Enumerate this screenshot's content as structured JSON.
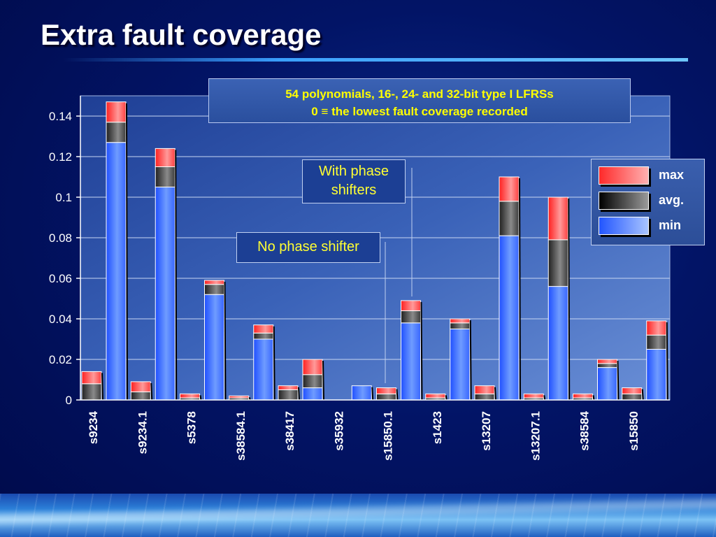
{
  "slide": {
    "title": "Extra fault coverage",
    "note_line1": "54 polynomials, 16-, 24- and 32-bit type I LFRSs",
    "note_line2": "0 ≡ the lowest fault coverage recorded",
    "callout_with": "With phase shifters",
    "callout_no": "No phase shifter"
  },
  "legend": {
    "max": "max",
    "avg": "avg.",
    "min": "min"
  },
  "colors": {
    "max": "#ff3b3b",
    "avg": "#555555",
    "min": "#3a6cff",
    "title": "#ffffff",
    "annotation": "#ffff00"
  },
  "chart_data": {
    "type": "bar",
    "stacked": true,
    "categories": [
      "s9234",
      "s9234.1",
      "s5378",
      "s38584.1",
      "s38417",
      "s35932",
      "s15850.1",
      "s1423",
      "s13207",
      "s13207.1",
      "s38584",
      "s15850"
    ],
    "groups": [
      "No phase shifter",
      "With phase shifters"
    ],
    "series": [
      {
        "name": "min",
        "no_phase_shifter": [
          0.0,
          0.0,
          0.0,
          0.0,
          0.0,
          0.0,
          0.0,
          0.0,
          0.0,
          0.0,
          0.0,
          0.0
        ],
        "with_phase_shifters": [
          0.127,
          0.105,
          0.052,
          0.03,
          0.006,
          0.007,
          0.038,
          0.035,
          0.081,
          0.056,
          0.016,
          0.025
        ]
      },
      {
        "name": "avg.",
        "no_phase_shifter": [
          0.008,
          0.004,
          0.001,
          0.001,
          0.005,
          0.0,
          0.003,
          0.001,
          0.003,
          0.001,
          0.001,
          0.003
        ],
        "with_phase_shifters": [
          0.137,
          0.115,
          0.057,
          0.033,
          0.0125,
          0.007,
          0.044,
          0.038,
          0.098,
          0.079,
          0.018,
          0.032
        ]
      },
      {
        "name": "max",
        "no_phase_shifter": [
          0.014,
          0.009,
          0.003,
          0.002,
          0.007,
          0.0,
          0.006,
          0.003,
          0.007,
          0.003,
          0.003,
          0.006
        ],
        "with_phase_shifters": [
          0.147,
          0.124,
          0.059,
          0.037,
          0.02,
          0.007,
          0.049,
          0.04,
          0.11,
          0.1,
          0.02,
          0.039
        ]
      }
    ],
    "ylim": [
      0,
      0.15
    ],
    "yticks": [
      "0",
      "0.02",
      "0.04",
      "0.06",
      "0.08",
      "0.1",
      "0.12",
      "0.14"
    ],
    "ytick_values": [
      0,
      0.02,
      0.04,
      0.06,
      0.08,
      0.1,
      0.12,
      0.14
    ],
    "grid": true,
    "legend_position": "right"
  }
}
